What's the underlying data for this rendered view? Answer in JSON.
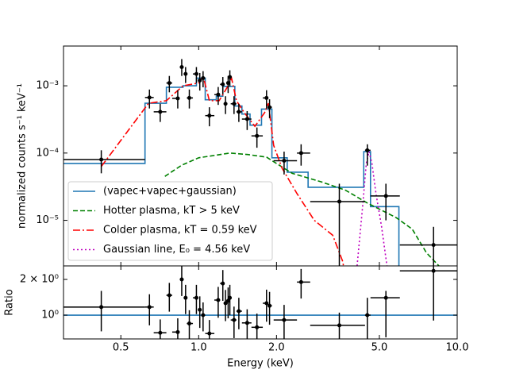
{
  "chart_data": [
    {
      "type": "spectrum",
      "ylabel": "normalized counts s⁻¹ keV⁻¹",
      "log_x": true,
      "log_y": true,
      "xlim": [
        0.3,
        10
      ],
      "ylim": [
        2.1e-06,
        0.0039
      ],
      "yticks": [
        {
          "value": 0.001,
          "label": "10⁻³"
        },
        {
          "value": 0.0001,
          "label": "10⁻⁴"
        },
        {
          "value": 1e-05,
          "label": "10⁻⁵"
        }
      ],
      "legend": "lower left",
      "data": {
        "color": "#000000",
        "x": [
          0.42,
          0.645,
          0.71,
          0.77,
          0.83,
          0.86,
          0.89,
          0.92,
          0.98,
          1.01,
          1.04,
          1.1,
          1.19,
          1.24,
          1.27,
          1.3,
          1.32,
          1.37,
          1.43,
          1.54,
          1.68,
          1.83,
          1.88,
          2.14,
          2.49,
          3.5,
          4.49,
          5.3,
          8.1
        ],
        "xmin": [
          0.3,
          0.62,
          0.67,
          0.75,
          0.79,
          0.845,
          0.875,
          0.9,
          0.95,
          0.995,
          1.025,
          1.06,
          1.15,
          1.21,
          1.25,
          1.285,
          1.31,
          1.33,
          1.4,
          1.47,
          1.6,
          1.77,
          1.85,
          1.95,
          2.4,
          2.7,
          4.4,
          4.62,
          6.0
        ],
        "xmax": [
          0.62,
          0.67,
          0.75,
          0.79,
          0.845,
          0.875,
          0.9,
          0.95,
          0.995,
          1.025,
          1.06,
          1.15,
          1.21,
          1.25,
          1.285,
          1.31,
          1.33,
          1.4,
          1.47,
          1.6,
          1.77,
          1.85,
          1.92,
          2.4,
          2.7,
          4.4,
          4.62,
          6.0,
          10
        ],
        "values": [
          8e-05,
          0.00067,
          0.00041,
          0.0011,
          0.00065,
          0.0019,
          0.0015,
          0.00066,
          0.0015,
          0.0012,
          0.0013,
          0.00036,
          0.00074,
          0.00105,
          0.00054,
          0.0011,
          0.00135,
          0.00054,
          0.00041,
          0.00032,
          0.00018,
          0.00066,
          0.00048,
          7.7e-05,
          0.0001,
          1.9e-05,
          0.00011,
          2.3e-05,
          4.3e-06
        ],
        "ymin": [
          5e-05,
          0.00046,
          0.00029,
          0.0008,
          0.00046,
          0.0014,
          0.0011,
          0.00046,
          0.0011,
          0.00085,
          0.00095,
          0.00025,
          0.00052,
          0.00075,
          0.00038,
          0.00078,
          0.00098,
          0.00038,
          0.00029,
          0.00022,
          0.00012,
          0.00046,
          0.00033,
          4.8e-05,
          6.5e-05,
          2.1e-06,
          6.5e-05,
          1e-05,
          2.1e-06
        ],
        "ymax": [
          0.00011,
          0.00088,
          0.00054,
          0.0014,
          0.00086,
          0.0025,
          0.0019,
          0.00088,
          0.0019,
          0.00155,
          0.00165,
          0.00048,
          0.00096,
          0.00135,
          0.0007,
          0.0014,
          0.0017,
          0.0007,
          0.00054,
          0.00042,
          0.00024,
          0.00086,
          0.00063,
          0.000105,
          0.000135,
          3.5e-05,
          0.000135,
          3.5e-05,
          8e-06
        ]
      },
      "series": [
        {
          "name": "(vapec+vapec+gaussian)",
          "color": "#1f77b4",
          "style": "step",
          "bins": [
            0.3,
            0.62,
            0.75,
            0.87,
            0.98,
            1.06,
            1.17,
            1.24,
            1.38,
            1.47,
            1.58,
            1.75,
            1.92,
            2.2,
            2.65,
            4.35,
            4.62,
            5.95,
            10
          ],
          "values": [
            7e-05,
            0.00055,
            0.00095,
            0.001,
            0.0013,
            0.00062,
            0.0007,
            0.00098,
            0.0005,
            0.00038,
            0.00026,
            0.00045,
            8.5e-05,
            5.2e-05,
            3.1e-05,
            0.000105,
            1.6e-05,
            1.5e-06
          ]
        },
        {
          "name": "Hotter plasma, kT > 5 keV",
          "color": "#008000",
          "style": "dashed",
          "x": [
            0.74,
            0.8,
            0.86,
            1.0,
            1.32,
            1.55,
            1.83,
            2.0,
            2.3,
            3.0,
            3.7,
            4.5,
            5.8,
            6.7,
            7.6,
            8.5
          ],
          "values": [
            4.5e-05,
            5.5e-05,
            6.6e-05,
            8.5e-05,
            0.0001,
            9.5e-05,
            8.7e-05,
            7e-05,
            5e-05,
            3.7e-05,
            2.8e-05,
            1.8e-05,
            1.1e-05,
            7.4e-06,
            3.3e-06,
            2.1e-06
          ]
        },
        {
          "name": "Colder plasma, kT = 0.59 keV",
          "color": "#ff0000",
          "style": "dashdot",
          "x": [
            0.42,
            0.64,
            0.75,
            0.87,
            1.0,
            1.04,
            1.1,
            1.2,
            1.3,
            1.34,
            1.4,
            1.5,
            1.65,
            1.8,
            1.86,
            1.95,
            2.1,
            2.4,
            2.8,
            3.3,
            3.6,
            3.7
          ],
          "values": [
            6.3e-05,
            0.00055,
            0.0006,
            0.001,
            0.0011,
            0.0014,
            0.0006,
            0.0006,
            0.001,
            0.0013,
            0.0006,
            0.0004,
            0.00025,
            0.0004,
            0.00055,
            0.00013,
            6e-05,
            2.5e-05,
            1e-05,
            6e-06,
            2.5e-06,
            1.5e-06
          ]
        },
        {
          "name": "Gaussian line, E₀ = 4.56 keV",
          "color": "#bf00bf",
          "style": "dotted",
          "x": [
            4.1,
            4.3,
            4.45,
            4.56,
            4.68,
            4.85,
            5.1,
            5.35
          ],
          "values": [
            2.1e-06,
            1.5e-05,
            7e-05,
            0.000105,
            7e-05,
            2.5e-05,
            8e-06,
            2.1e-06
          ]
        }
      ]
    },
    {
      "type": "ratio",
      "ylabel": "Ratio",
      "xlabel": "Energy (keV)",
      "log_x": true,
      "log_y": true,
      "xlim": [
        0.3,
        10
      ],
      "ylim": [
        0.63,
        2.6
      ],
      "xticks": [
        0.5,
        {
          "value": 1,
          "label": "1.0"
        },
        {
          "value": 2,
          "label": "2.0"
        },
        {
          "value": 5,
          "label": "5.0"
        },
        {
          "value": 10,
          "label": "10.0"
        }
      ],
      "yticks": [
        {
          "value": 1,
          "label": "10⁰"
        },
        {
          "value": 2,
          "label": "2 × 10⁰"
        }
      ],
      "reference": {
        "color": "#1f77b4",
        "x": [
          0.3,
          10
        ],
        "values": [
          1,
          1
        ]
      },
      "data": {
        "color": "#000000",
        "x": [
          0.42,
          0.645,
          0.71,
          0.77,
          0.83,
          0.86,
          0.89,
          0.92,
          0.98,
          1.01,
          1.04,
          1.1,
          1.19,
          1.24,
          1.27,
          1.3,
          1.32,
          1.37,
          1.43,
          1.54,
          1.68,
          1.83,
          1.88,
          2.14,
          2.49,
          3.5,
          4.49,
          5.3,
          8.1
        ],
        "xmin": [
          0.3,
          0.62,
          0.67,
          0.75,
          0.79,
          0.845,
          0.875,
          0.9,
          0.95,
          0.995,
          1.025,
          1.06,
          1.15,
          1.21,
          1.25,
          1.285,
          1.31,
          1.33,
          1.4,
          1.47,
          1.6,
          1.77,
          1.85,
          1.95,
          2.4,
          2.7,
          4.4,
          4.62,
          6.0
        ],
        "xmax": [
          0.62,
          0.67,
          0.75,
          0.79,
          0.845,
          0.875,
          0.9,
          0.95,
          0.995,
          1.025,
          1.06,
          1.15,
          1.21,
          1.25,
          1.285,
          1.31,
          1.33,
          1.4,
          1.47,
          1.6,
          1.77,
          1.85,
          1.92,
          2.4,
          2.7,
          4.4,
          4.62,
          6.0,
          10
        ],
        "values": [
          1.17,
          1.17,
          0.71,
          1.47,
          0.72,
          2.0,
          1.4,
          0.85,
          1.4,
          1.11,
          1.0,
          0.7,
          1.34,
          1.85,
          1.26,
          1.32,
          1.4,
          0.91,
          1.08,
          0.86,
          0.79,
          1.26,
          1.2,
          0.91,
          1.9,
          0.82,
          1.0,
          1.4,
          2.36
        ],
        "ymin": [
          0.73,
          0.82,
          0.5,
          1.07,
          0.51,
          1.45,
          1.02,
          0.6,
          1.02,
          0.78,
          0.73,
          0.49,
          0.95,
          1.32,
          0.89,
          0.94,
          1.0,
          0.64,
          0.76,
          0.6,
          0.55,
          0.88,
          0.83,
          0.6,
          1.38,
          0.6,
          0.6,
          0.65,
          0.9
        ],
        "ymax": [
          1.6,
          1.5,
          0.92,
          1.87,
          0.94,
          2.6,
          1.8,
          1.1,
          1.8,
          1.44,
          1.28,
          0.91,
          1.73,
          2.4,
          1.63,
          1.71,
          1.8,
          1.18,
          1.4,
          1.12,
          1.03,
          1.64,
          1.57,
          1.22,
          2.45,
          1.05,
          1.4,
          1.6,
          2.6
        ]
      }
    }
  ]
}
